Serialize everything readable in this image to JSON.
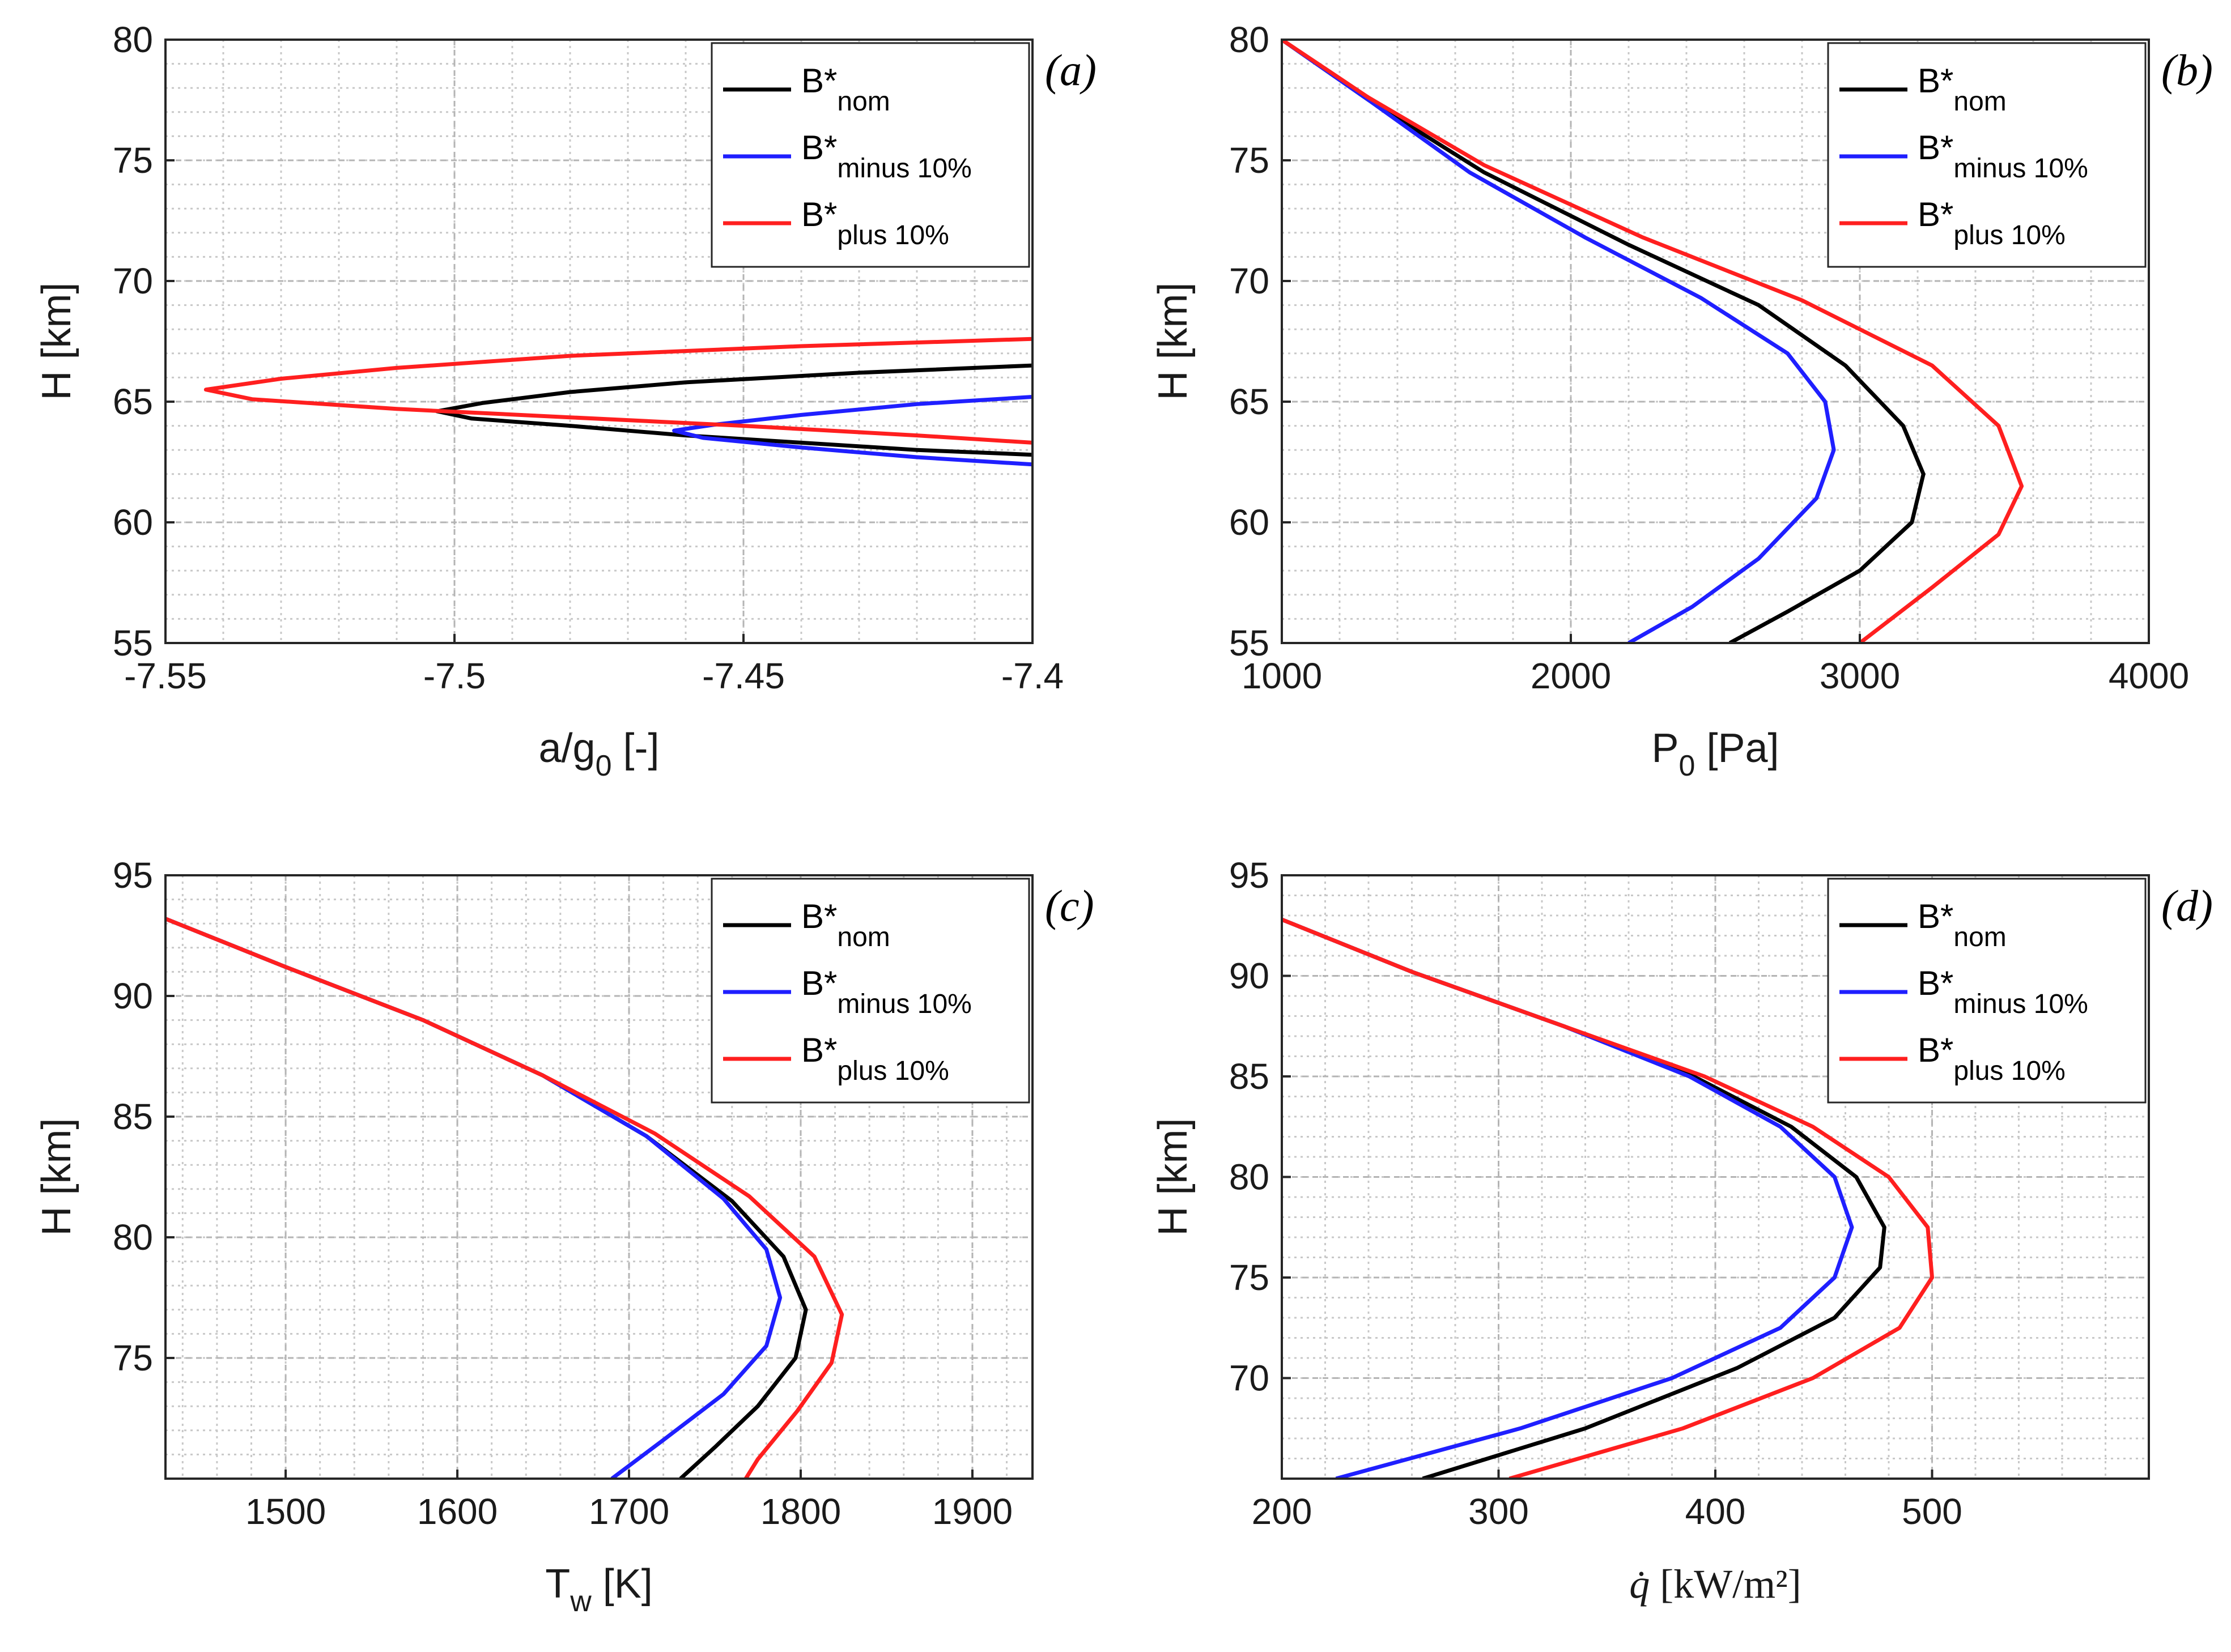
{
  "figure": {
    "legend": [
      {
        "base": "B*",
        "sub": "nom",
        "color": "#000000"
      },
      {
        "base": "B*",
        "sub": "minus 10%",
        "color": "#1f1fff"
      },
      {
        "base": "B*",
        "sub": "plus 10%",
        "color": "#ff1f1f"
      }
    ]
  },
  "chart_data": [
    {
      "type": "line",
      "panel": "(a)",
      "xlabel": {
        "base": "a/g",
        "sub": "0",
        "rest": " [-]"
      },
      "ylabel": "H [km]",
      "xlim": [
        -7.55,
        -7.4
      ],
      "ylim": [
        55,
        80
      ],
      "xticks": [
        -7.55,
        -7.5,
        -7.45,
        -7.4
      ],
      "xtick_labels": [
        "-7.55",
        "-7.5",
        "-7.45",
        "-7.4"
      ],
      "yticks": [
        55,
        60,
        65,
        70,
        75,
        80
      ],
      "grid": true,
      "legend_position": "top-right",
      "series": [
        {
          "name": "B*nom",
          "color": "#000000",
          "points": [
            [
              -7.4,
              66.5
            ],
            [
              -7.43,
              66.2
            ],
            [
              -7.46,
              65.8
            ],
            [
              -7.48,
              65.4
            ],
            [
              -7.495,
              64.95
            ],
            [
              -7.503,
              64.6
            ],
            [
              -7.497,
              64.3
            ],
            [
              -7.48,
              64.0
            ],
            [
              -7.46,
              63.6
            ],
            [
              -7.44,
              63.3
            ],
            [
              -7.42,
              63.0
            ],
            [
              -7.4,
              62.8
            ]
          ]
        },
        {
          "name": "B*minus 10%",
          "color": "#1f1fff",
          "points": [
            [
              -7.4,
              65.2
            ],
            [
              -7.42,
              64.9
            ],
            [
              -7.44,
              64.45
            ],
            [
              -7.455,
              64.05
            ],
            [
              -7.462,
              63.8
            ],
            [
              -7.457,
              63.5
            ],
            [
              -7.44,
              63.1
            ],
            [
              -7.42,
              62.7
            ],
            [
              -7.4,
              62.4
            ]
          ]
        },
        {
          "name": "B*plus 10%",
          "color": "#ff1f1f",
          "points": [
            [
              -7.4,
              67.6
            ],
            [
              -7.44,
              67.3
            ],
            [
              -7.48,
              66.9
            ],
            [
              -7.51,
              66.4
            ],
            [
              -7.53,
              65.95
            ],
            [
              -7.543,
              65.5
            ],
            [
              -7.535,
              65.1
            ],
            [
              -7.51,
              64.7
            ],
            [
              -7.48,
              64.35
            ],
            [
              -7.45,
              64.0
            ],
            [
              -7.42,
              63.6
            ],
            [
              -7.4,
              63.3
            ]
          ]
        }
      ]
    },
    {
      "type": "line",
      "panel": "(b)",
      "xlabel": {
        "base": "P",
        "sub": "0",
        "rest": " [Pa]"
      },
      "ylabel": "H [km]",
      "xlim": [
        1000,
        4000
      ],
      "ylim": [
        55,
        80
      ],
      "xticks": [
        1000,
        2000,
        3000,
        4000
      ],
      "xtick_labels": [
        "1000",
        "2000",
        "3000",
        "4000"
      ],
      "yticks": [
        55,
        60,
        65,
        70,
        75,
        80
      ],
      "grid": true,
      "legend_position": "top-right",
      "series": [
        {
          "name": "B*nom",
          "color": "#000000",
          "points": [
            [
              1000,
              80
            ],
            [
              1300,
              77.5
            ],
            [
              1700,
              74.5
            ],
            [
              2200,
              71.5
            ],
            [
              2650,
              69
            ],
            [
              2950,
              66.5
            ],
            [
              3150,
              64
            ],
            [
              3220,
              62
            ],
            [
              3180,
              60
            ],
            [
              3000,
              58
            ],
            [
              2750,
              56.3
            ],
            [
              2550,
              55
            ]
          ]
        },
        {
          "name": "B*minus 10%",
          "color": "#1f1fff",
          "points": [
            [
              1000,
              80
            ],
            [
              1300,
              77.5
            ],
            [
              1650,
              74.5
            ],
            [
              2050,
              71.8
            ],
            [
              2450,
              69.3
            ],
            [
              2750,
              67
            ],
            [
              2880,
              65
            ],
            [
              2910,
              63
            ],
            [
              2850,
              61
            ],
            [
              2650,
              58.5
            ],
            [
              2420,
              56.5
            ],
            [
              2200,
              55
            ]
          ]
        },
        {
          "name": "B*plus 10%",
          "color": "#ff1f1f",
          "points": [
            [
              1000,
              80
            ],
            [
              1300,
              77.6
            ],
            [
              1700,
              74.8
            ],
            [
              2250,
              71.8
            ],
            [
              2800,
              69.2
            ],
            [
              3250,
              66.5
            ],
            [
              3480,
              64
            ],
            [
              3560,
              61.5
            ],
            [
              3480,
              59.5
            ],
            [
              3250,
              57.3
            ],
            [
              3000,
              55
            ]
          ]
        }
      ]
    },
    {
      "type": "line",
      "panel": "(c)",
      "xlabel": {
        "base": "T",
        "sub": "w",
        "rest": " [K]"
      },
      "ylabel": "H [km]",
      "xlim": [
        1430,
        1935
      ],
      "ylim": [
        70,
        95
      ],
      "xticks": [
        1500,
        1600,
        1700,
        1800,
        1900
      ],
      "xtick_labels": [
        "1500",
        "1600",
        "1700",
        "1800",
        "1900"
      ],
      "yticks": [
        75,
        80,
        85,
        90,
        95
      ],
      "grid": true,
      "legend_position": "top-right",
      "series": [
        {
          "name": "B*nom",
          "color": "#000000",
          "points": [
            [
              1430,
              93.2
            ],
            [
              1500,
              91.2
            ],
            [
              1580,
              89
            ],
            [
              1650,
              86.7
            ],
            [
              1710,
              84.2
            ],
            [
              1760,
              81.5
            ],
            [
              1790,
              79.2
            ],
            [
              1803,
              77
            ],
            [
              1797,
              75
            ],
            [
              1775,
              73
            ],
            [
              1750,
              71.3
            ],
            [
              1730,
              70
            ]
          ]
        },
        {
          "name": "B*minus 10%",
          "color": "#1f1fff",
          "points": [
            [
              1430,
              93.2
            ],
            [
              1500,
              91.2
            ],
            [
              1580,
              89
            ],
            [
              1650,
              86.7
            ],
            [
              1710,
              84.2
            ],
            [
              1755,
              81.6
            ],
            [
              1780,
              79.5
            ],
            [
              1788,
              77.5
            ],
            [
              1780,
              75.5
            ],
            [
              1755,
              73.5
            ],
            [
              1720,
              71.6
            ],
            [
              1690,
              70
            ]
          ]
        },
        {
          "name": "B*plus 10%",
          "color": "#ff1f1f",
          "points": [
            [
              1430,
              93.2
            ],
            [
              1500,
              91.2
            ],
            [
              1580,
              89
            ],
            [
              1650,
              86.7
            ],
            [
              1715,
              84.3
            ],
            [
              1770,
              81.7
            ],
            [
              1808,
              79.2
            ],
            [
              1824,
              76.8
            ],
            [
              1818,
              74.8
            ],
            [
              1798,
              72.8
            ],
            [
              1775,
              70.8
            ],
            [
              1768,
              70
            ]
          ]
        }
      ]
    },
    {
      "type": "line",
      "panel": "(d)",
      "xlabel": {
        "math": "q̇",
        "rest": " [kW/m²]"
      },
      "ylabel": "H [km]",
      "xlim": [
        200,
        600
      ],
      "ylim": [
        65,
        95
      ],
      "xticks": [
        200,
        300,
        400,
        500
      ],
      "xtick_labels": [
        "200",
        "300",
        "400",
        "500"
      ],
      "yticks": [
        70,
        75,
        80,
        85,
        90,
        95
      ],
      "grid": true,
      "legend_position": "top-right",
      "series": [
        {
          "name": "B*nom",
          "color": "#000000",
          "points": [
            [
              200,
              92.8
            ],
            [
              260,
              90.2
            ],
            [
              330,
              87.5
            ],
            [
              390,
              85
            ],
            [
              435,
              82.5
            ],
            [
              465,
              80
            ],
            [
              478,
              77.5
            ],
            [
              476,
              75.5
            ],
            [
              455,
              73
            ],
            [
              410,
              70.5
            ],
            [
              340,
              67.5
            ],
            [
              265,
              65
            ]
          ]
        },
        {
          "name": "B*minus 10%",
          "color": "#1f1fff",
          "points": [
            [
              200,
              92.8
            ],
            [
              260,
              90.2
            ],
            [
              330,
              87.5
            ],
            [
              388,
              85
            ],
            [
              430,
              82.5
            ],
            [
              455,
              80
            ],
            [
              463,
              77.5
            ],
            [
              455,
              75
            ],
            [
              430,
              72.5
            ],
            [
              380,
              70
            ],
            [
              310,
              67.5
            ],
            [
              225,
              65
            ]
          ]
        },
        {
          "name": "B*plus 10%",
          "color": "#ff1f1f",
          "points": [
            [
              200,
              92.8
            ],
            [
              260,
              90.2
            ],
            [
              330,
              87.5
            ],
            [
              395,
              85
            ],
            [
              445,
              82.5
            ],
            [
              480,
              80
            ],
            [
              498,
              77.5
            ],
            [
              500,
              75
            ],
            [
              485,
              72.5
            ],
            [
              445,
              70
            ],
            [
              385,
              67.5
            ],
            [
              305,
              65
            ]
          ]
        }
      ]
    }
  ]
}
